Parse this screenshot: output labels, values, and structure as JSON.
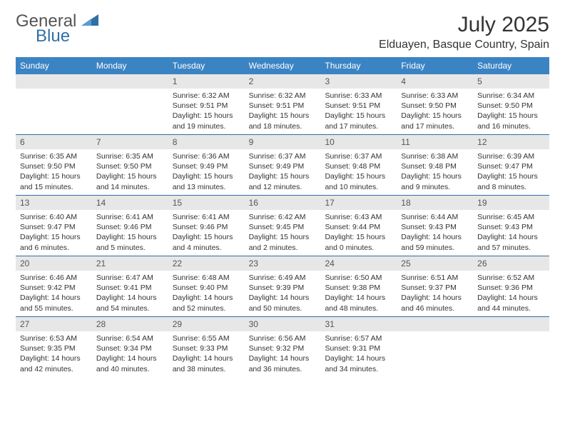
{
  "brand": {
    "word1": "General",
    "word2": "Blue",
    "word1_color": "#6a6a6a",
    "word2_color": "#2f6fa7",
    "triangle_color": "#2f6fa7"
  },
  "title": "July 2025",
  "location": "Elduayen, Basque Country, Spain",
  "colors": {
    "header_bg": "#3b84c4",
    "header_text": "#ffffff",
    "daynum_bg": "#e7e7e7",
    "daynum_text": "#555555",
    "body_text": "#333333",
    "rule": "#2f6fa7",
    "page_bg": "#ffffff"
  },
  "weekdays": [
    "Sunday",
    "Monday",
    "Tuesday",
    "Wednesday",
    "Thursday",
    "Friday",
    "Saturday"
  ],
  "weeks": [
    [
      {
        "n": "",
        "sr": "",
        "ss": "",
        "dl": ""
      },
      {
        "n": "",
        "sr": "",
        "ss": "",
        "dl": ""
      },
      {
        "n": "1",
        "sr": "6:32 AM",
        "ss": "9:51 PM",
        "dl": "15 hours and 19 minutes."
      },
      {
        "n": "2",
        "sr": "6:32 AM",
        "ss": "9:51 PM",
        "dl": "15 hours and 18 minutes."
      },
      {
        "n": "3",
        "sr": "6:33 AM",
        "ss": "9:51 PM",
        "dl": "15 hours and 17 minutes."
      },
      {
        "n": "4",
        "sr": "6:33 AM",
        "ss": "9:50 PM",
        "dl": "15 hours and 17 minutes."
      },
      {
        "n": "5",
        "sr": "6:34 AM",
        "ss": "9:50 PM",
        "dl": "15 hours and 16 minutes."
      }
    ],
    [
      {
        "n": "6",
        "sr": "6:35 AM",
        "ss": "9:50 PM",
        "dl": "15 hours and 15 minutes."
      },
      {
        "n": "7",
        "sr": "6:35 AM",
        "ss": "9:50 PM",
        "dl": "15 hours and 14 minutes."
      },
      {
        "n": "8",
        "sr": "6:36 AM",
        "ss": "9:49 PM",
        "dl": "15 hours and 13 minutes."
      },
      {
        "n": "9",
        "sr": "6:37 AM",
        "ss": "9:49 PM",
        "dl": "15 hours and 12 minutes."
      },
      {
        "n": "10",
        "sr": "6:37 AM",
        "ss": "9:48 PM",
        "dl": "15 hours and 10 minutes."
      },
      {
        "n": "11",
        "sr": "6:38 AM",
        "ss": "9:48 PM",
        "dl": "15 hours and 9 minutes."
      },
      {
        "n": "12",
        "sr": "6:39 AM",
        "ss": "9:47 PM",
        "dl": "15 hours and 8 minutes."
      }
    ],
    [
      {
        "n": "13",
        "sr": "6:40 AM",
        "ss": "9:47 PM",
        "dl": "15 hours and 6 minutes."
      },
      {
        "n": "14",
        "sr": "6:41 AM",
        "ss": "9:46 PM",
        "dl": "15 hours and 5 minutes."
      },
      {
        "n": "15",
        "sr": "6:41 AM",
        "ss": "9:46 PM",
        "dl": "15 hours and 4 minutes."
      },
      {
        "n": "16",
        "sr": "6:42 AM",
        "ss": "9:45 PM",
        "dl": "15 hours and 2 minutes."
      },
      {
        "n": "17",
        "sr": "6:43 AM",
        "ss": "9:44 PM",
        "dl": "15 hours and 0 minutes."
      },
      {
        "n": "18",
        "sr": "6:44 AM",
        "ss": "9:43 PM",
        "dl": "14 hours and 59 minutes."
      },
      {
        "n": "19",
        "sr": "6:45 AM",
        "ss": "9:43 PM",
        "dl": "14 hours and 57 minutes."
      }
    ],
    [
      {
        "n": "20",
        "sr": "6:46 AM",
        "ss": "9:42 PM",
        "dl": "14 hours and 55 minutes."
      },
      {
        "n": "21",
        "sr": "6:47 AM",
        "ss": "9:41 PM",
        "dl": "14 hours and 54 minutes."
      },
      {
        "n": "22",
        "sr": "6:48 AM",
        "ss": "9:40 PM",
        "dl": "14 hours and 52 minutes."
      },
      {
        "n": "23",
        "sr": "6:49 AM",
        "ss": "9:39 PM",
        "dl": "14 hours and 50 minutes."
      },
      {
        "n": "24",
        "sr": "6:50 AM",
        "ss": "9:38 PM",
        "dl": "14 hours and 48 minutes."
      },
      {
        "n": "25",
        "sr": "6:51 AM",
        "ss": "9:37 PM",
        "dl": "14 hours and 46 minutes."
      },
      {
        "n": "26",
        "sr": "6:52 AM",
        "ss": "9:36 PM",
        "dl": "14 hours and 44 minutes."
      }
    ],
    [
      {
        "n": "27",
        "sr": "6:53 AM",
        "ss": "9:35 PM",
        "dl": "14 hours and 42 minutes."
      },
      {
        "n": "28",
        "sr": "6:54 AM",
        "ss": "9:34 PM",
        "dl": "14 hours and 40 minutes."
      },
      {
        "n": "29",
        "sr": "6:55 AM",
        "ss": "9:33 PM",
        "dl": "14 hours and 38 minutes."
      },
      {
        "n": "30",
        "sr": "6:56 AM",
        "ss": "9:32 PM",
        "dl": "14 hours and 36 minutes."
      },
      {
        "n": "31",
        "sr": "6:57 AM",
        "ss": "9:31 PM",
        "dl": "14 hours and 34 minutes."
      },
      {
        "n": "",
        "sr": "",
        "ss": "",
        "dl": ""
      },
      {
        "n": "",
        "sr": "",
        "ss": "",
        "dl": ""
      }
    ]
  ],
  "labels": {
    "sunrise": "Sunrise:",
    "sunset": "Sunset:",
    "daylight": "Daylight:"
  }
}
